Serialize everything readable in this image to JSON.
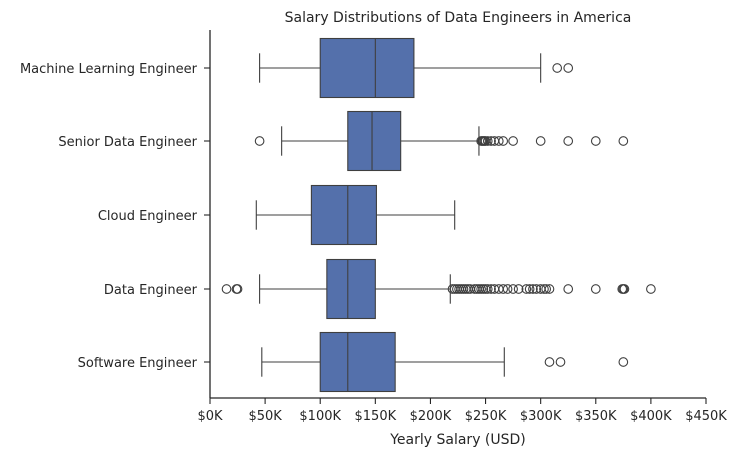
{
  "chart_data": {
    "type": "boxplot",
    "title": "Salary Distributions of Data Engineers in America",
    "xlabel": "Yearly Salary (USD)",
    "ylabel": "",
    "xlim": [
      0,
      450000
    ],
    "x_ticks": [
      0,
      50000,
      100000,
      150000,
      200000,
      250000,
      300000,
      350000,
      400000,
      450000
    ],
    "x_tick_labels": [
      "$0K",
      "$50K",
      "$100K",
      "$150K",
      "$200K",
      "$250K",
      "$300K",
      "$350K",
      "$400K",
      "$450K"
    ],
    "grid": false,
    "orientation": "horizontal",
    "box_color": "#5470ab",
    "line_color": "#3f3f3f",
    "categories": [
      "Machine Learning Engineer",
      "Senior Data Engineer",
      "Cloud Engineer",
      "Data Engineer",
      "Software Engineer"
    ],
    "boxes": [
      {
        "category": "Machine Learning Engineer",
        "whisker_low": 45000,
        "q1": 100000,
        "median": 150000,
        "q3": 185000,
        "whisker_high": 300000,
        "outliers": [
          315000,
          325000
        ]
      },
      {
        "category": "Senior Data Engineer",
        "whisker_low": 65000,
        "q1": 125000,
        "median": 147000,
        "q3": 173000,
        "whisker_high": 244000,
        "outliers": [
          45000,
          246000,
          247000,
          248000,
          249000,
          250000,
          252000,
          255000,
          258000,
          262000,
          266000,
          275000,
          300000,
          325000,
          350000,
          375000
        ]
      },
      {
        "category": "Cloud Engineer",
        "whisker_low": 42000,
        "q1": 92000,
        "median": 125000,
        "q3": 151000,
        "whisker_high": 222000,
        "outliers": []
      },
      {
        "category": "Data Engineer",
        "whisker_low": 45000,
        "q1": 106000,
        "median": 125000,
        "q3": 150000,
        "whisker_high": 218000,
        "outliers": [
          15000,
          24000,
          25000,
          220000,
          222000,
          224000,
          226000,
          228000,
          230000,
          232000,
          234000,
          236000,
          240000,
          242000,
          244000,
          246000,
          248000,
          250000,
          252000,
          255000,
          258000,
          262000,
          266000,
          270000,
          275000,
          280000,
          287000,
          290000,
          293000,
          296000,
          300000,
          303000,
          305000,
          308000,
          325000,
          350000,
          374000,
          375000,
          376000,
          400000
        ]
      },
      {
        "category": "Software Engineer",
        "whisker_low": 47000,
        "q1": 100000,
        "median": 125000,
        "q3": 168000,
        "whisker_high": 267000,
        "outliers": [
          308000,
          318000,
          375000
        ]
      }
    ]
  }
}
